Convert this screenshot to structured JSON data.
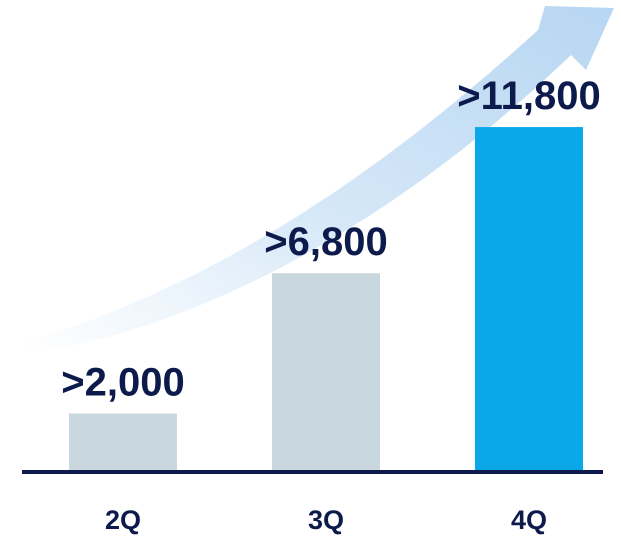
{
  "chart_data": {
    "type": "bar",
    "categories": [
      "2Q",
      "3Q",
      "4Q"
    ],
    "values": [
      2000,
      6800,
      11800
    ],
    "data_labels": [
      ">2,000",
      ">6,800",
      ">11,800"
    ],
    "ylim": [
      0,
      13000
    ],
    "grid": false,
    "legend": "none",
    "trend_arrow": true
  },
  "colors": {
    "past_bar": "#c8d8de",
    "current_bar": "#0aa8e8",
    "axis": "#0d1b4c",
    "label_text": "#0d1b4c",
    "arrow_light": "#dbeaf8",
    "arrow_mid": "#bcd9f3"
  }
}
